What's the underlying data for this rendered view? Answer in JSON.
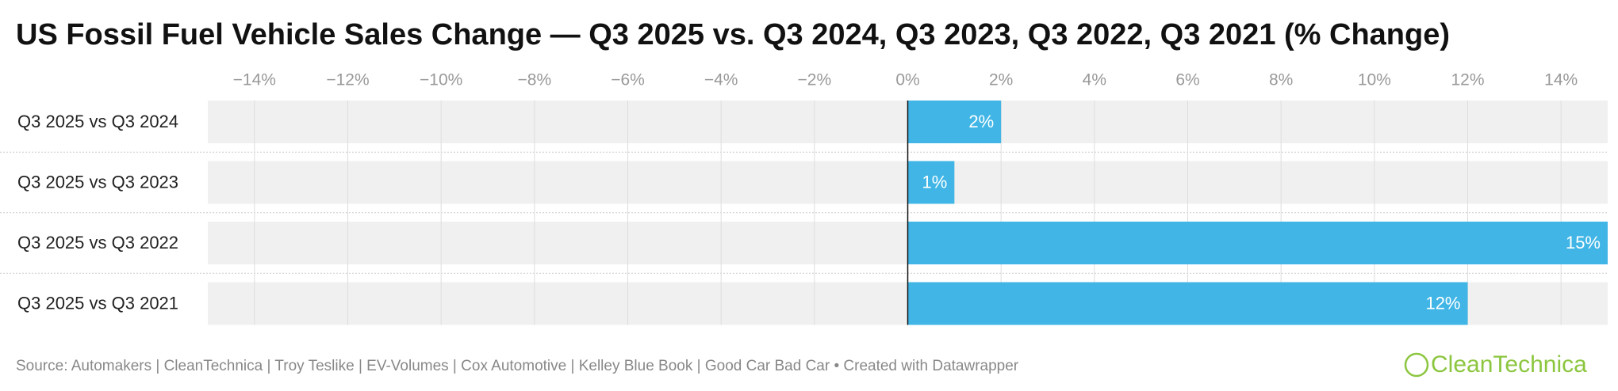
{
  "chart_data": {
    "type": "bar",
    "orientation": "horizontal",
    "title": "US Fossil Fuel Vehicle Sales Change — Q3 2025 vs. Q3 2024, Q3 2023, Q3 2022, Q3 2021 (% Change)",
    "categories": [
      "Q3 2025 vs Q3 2024",
      "Q3 2025 vs Q3 2023",
      "Q3 2025 vs Q3 2022",
      "Q3 2025 vs Q3 2021"
    ],
    "values": [
      2,
      1,
      15,
      12
    ],
    "value_labels": [
      "2%",
      "1%",
      "15%",
      "12%"
    ],
    "color": "#41b6e6",
    "xlim": [
      -15,
      15
    ],
    "xticks": [
      {
        "value": -14,
        "label": "−14%"
      },
      {
        "value": -12,
        "label": "−12%"
      },
      {
        "value": -10,
        "label": "−10%"
      },
      {
        "value": -8,
        "label": "−8%"
      },
      {
        "value": -6,
        "label": "−6%"
      },
      {
        "value": -4,
        "label": "−4%"
      },
      {
        "value": -2,
        "label": "−2%"
      },
      {
        "value": 0,
        "label": "0%"
      },
      {
        "value": 2,
        "label": "2%"
      },
      {
        "value": 4,
        "label": "4%"
      },
      {
        "value": 6,
        "label": "6%"
      },
      {
        "value": 8,
        "label": "8%"
      },
      {
        "value": 10,
        "label": "10%"
      },
      {
        "value": 12,
        "label": "12%"
      },
      {
        "value": 14,
        "label": "14%"
      }
    ],
    "grid": true,
    "source": "Source: Automakers | CleanTechnica | Troy Teslike | EV-Volumes | Cox Automotive | Kelley Blue Book | Good Car Bad Car • Created with Datawrapper",
    "logo": "CleanTechnica"
  }
}
